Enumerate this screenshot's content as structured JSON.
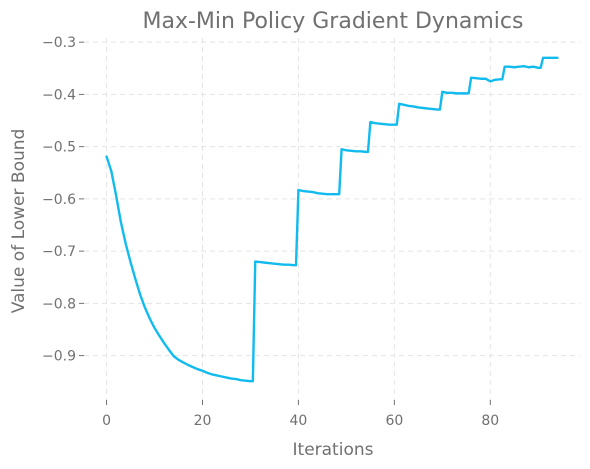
{
  "chart_data": {
    "type": "line",
    "title": "Max-Min Policy Gradient Dynamics",
    "xlabel": "Iterations",
    "ylabel": "Value of Lower Bound",
    "xlim": [
      -4.7,
      98.7
    ],
    "ylim": [
      -0.985,
      -0.292
    ],
    "xticks": [
      0,
      20,
      40,
      60,
      80
    ],
    "yticks": [
      -0.9,
      -0.8,
      -0.7,
      -0.6,
      -0.5,
      -0.4,
      -0.3
    ],
    "xtick_labels": [
      "0",
      "20",
      "40",
      "60",
      "80"
    ],
    "ytick_labels": [
      "−0.9",
      "−0.8",
      "−0.7",
      "−0.6",
      "−0.5",
      "−0.4",
      "−0.3"
    ],
    "grid": true,
    "color": "#12bbee",
    "series": [
      {
        "x": [
          0,
          1,
          2,
          3,
          4,
          5,
          6,
          7,
          8,
          9,
          10,
          11,
          12,
          13,
          14,
          15,
          16,
          17,
          18,
          19,
          20,
          21,
          22,
          23,
          24,
          25,
          26,
          27,
          28,
          29,
          30,
          30.5,
          31,
          32,
          33,
          34,
          35,
          36,
          37,
          38,
          39,
          39.5,
          40,
          41,
          42,
          43,
          44,
          45,
          46,
          47,
          48,
          48.5,
          49,
          50,
          51,
          52,
          53,
          54,
          54.5,
          55,
          56,
          57,
          58,
          59,
          60,
          60.5,
          61,
          62,
          63,
          64,
          65,
          66,
          67,
          68,
          69,
          69.5,
          70,
          71,
          72,
          73,
          74,
          75,
          75.5,
          76,
          77,
          78,
          79,
          80,
          81,
          82,
          82.5,
          83,
          84,
          85,
          86,
          87,
          88,
          89,
          90,
          90.5,
          91,
          92,
          93,
          94
        ],
        "y": [
          -0.519,
          -0.547,
          -0.594,
          -0.645,
          -0.686,
          -0.721,
          -0.753,
          -0.783,
          -0.808,
          -0.829,
          -0.847,
          -0.862,
          -0.876,
          -0.889,
          -0.901,
          -0.908,
          -0.913,
          -0.918,
          -0.922,
          -0.926,
          -0.929,
          -0.933,
          -0.936,
          -0.938,
          -0.94,
          -0.942,
          -0.944,
          -0.945,
          -0.947,
          -0.948,
          -0.949,
          -0.949,
          -0.72,
          -0.721,
          -0.722,
          -0.723,
          -0.724,
          -0.725,
          -0.726,
          -0.726,
          -0.727,
          -0.727,
          -0.583,
          -0.585,
          -0.586,
          -0.587,
          -0.589,
          -0.59,
          -0.591,
          -0.591,
          -0.591,
          -0.591,
          -0.505,
          -0.507,
          -0.508,
          -0.509,
          -0.509,
          -0.51,
          -0.51,
          -0.453,
          -0.455,
          -0.456,
          -0.457,
          -0.458,
          -0.458,
          -0.458,
          -0.418,
          -0.42,
          -0.422,
          -0.423,
          -0.425,
          -0.426,
          -0.427,
          -0.428,
          -0.429,
          -0.429,
          -0.395,
          -0.397,
          -0.397,
          -0.398,
          -0.398,
          -0.398,
          -0.398,
          -0.368,
          -0.369,
          -0.37,
          -0.37,
          -0.375,
          -0.372,
          -0.371,
          -0.371,
          -0.347,
          -0.347,
          -0.348,
          -0.347,
          -0.346,
          -0.348,
          -0.347,
          -0.349,
          -0.349,
          -0.33,
          -0.33,
          -0.33,
          -0.33
        ]
      }
    ]
  }
}
